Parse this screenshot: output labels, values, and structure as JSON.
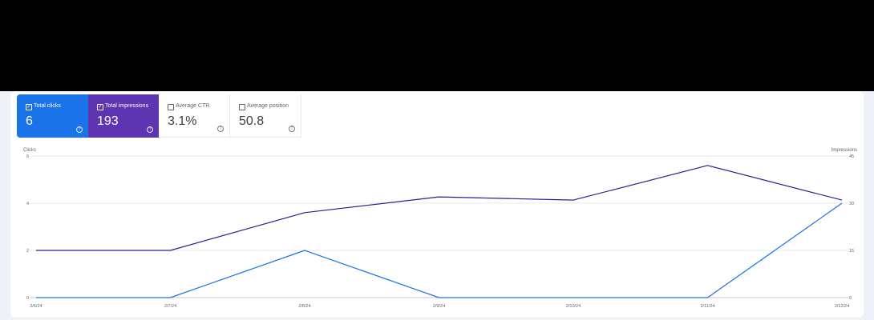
{
  "cards": [
    {
      "label": "Total clicks",
      "value": "6",
      "checked": true
    },
    {
      "label": "Total impressions",
      "value": "193",
      "checked": true
    },
    {
      "label": "Average CTR",
      "value": "3.1%",
      "checked": false
    },
    {
      "label": "Average position",
      "value": "50.8",
      "checked": false
    }
  ],
  "icons": {
    "checkbox_checked": "checkbox-checked-icon",
    "checkbox": "checkbox-icon",
    "help": "help-icon"
  },
  "colors": {
    "clicks": "#1a73e8",
    "impressions": "#311b92"
  },
  "chart_data": {
    "type": "line",
    "x": [
      "2/6/24",
      "2/7/24",
      "2/8/24",
      "2/9/24",
      "2/10/24",
      "2/11/24",
      "2/12/24"
    ],
    "left_axis": {
      "title": "Clicks",
      "ticks": [
        "0",
        "2",
        "4",
        "6"
      ],
      "range": [
        0,
        6
      ]
    },
    "right_axis": {
      "title": "Impressions",
      "ticks": [
        "0",
        "15",
        "30",
        "45"
      ],
      "range": [
        0,
        45
      ]
    },
    "grid": true,
    "series": [
      {
        "name": "Clicks",
        "axis": "left",
        "values": [
          0,
          0,
          2,
          0,
          0,
          0,
          4
        ]
      },
      {
        "name": "Impressions",
        "axis": "right",
        "values": [
          15,
          15,
          27,
          32,
          31,
          42,
          31
        ]
      }
    ]
  }
}
